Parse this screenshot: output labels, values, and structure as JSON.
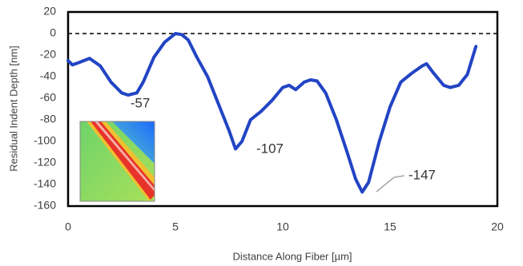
{
  "chart_data": {
    "type": "line",
    "x_label": "Distance Along Fiber [µm]",
    "y_label": "Residual Indent Depth [nm]",
    "xlim": [
      0,
      20
    ],
    "xticks": [
      0,
      5,
      10,
      15,
      20
    ],
    "ylim": [
      -160,
      20
    ],
    "yticks": [
      20,
      0,
      -20,
      -40,
      -60,
      -80,
      -100,
      -120,
      -140,
      -160
    ],
    "reference_line": 0,
    "series": [
      {
        "color": "#2244c4",
        "x": [
          0,
          0.2,
          0.5,
          1,
          1.5,
          2,
          2.5,
          2.8,
          3.2,
          3.5,
          4,
          4.5,
          5,
          5.3,
          5.6,
          6,
          6.5,
          7,
          7.5,
          7.8,
          8.1,
          8.5,
          9,
          9.5,
          10,
          10.3,
          10.6,
          11,
          11.3,
          11.6,
          12,
          12.5,
          13,
          13.4,
          13.7,
          14,
          14.5,
          15,
          15.5,
          16,
          16.5,
          16.7,
          17,
          17.5,
          17.8,
          18.2,
          18.6,
          19
        ],
        "values": [
          -25,
          -29,
          -27,
          -23,
          -30,
          -45,
          -55,
          -57,
          -55,
          -45,
          -22,
          -8,
          0,
          -1,
          -6,
          -22,
          -40,
          -65,
          -90,
          -107,
          -100,
          -80,
          -72,
          -62,
          -50,
          -48,
          -52,
          -45,
          -43,
          -44,
          -55,
          -80,
          -110,
          -135,
          -147,
          -138,
          -100,
          -68,
          -45,
          -37,
          -30,
          -28,
          -36,
          -48,
          -50,
          -48,
          -38,
          -12
        ]
      }
    ],
    "annotations": [
      "-57",
      "-107",
      "-147"
    ]
  }
}
